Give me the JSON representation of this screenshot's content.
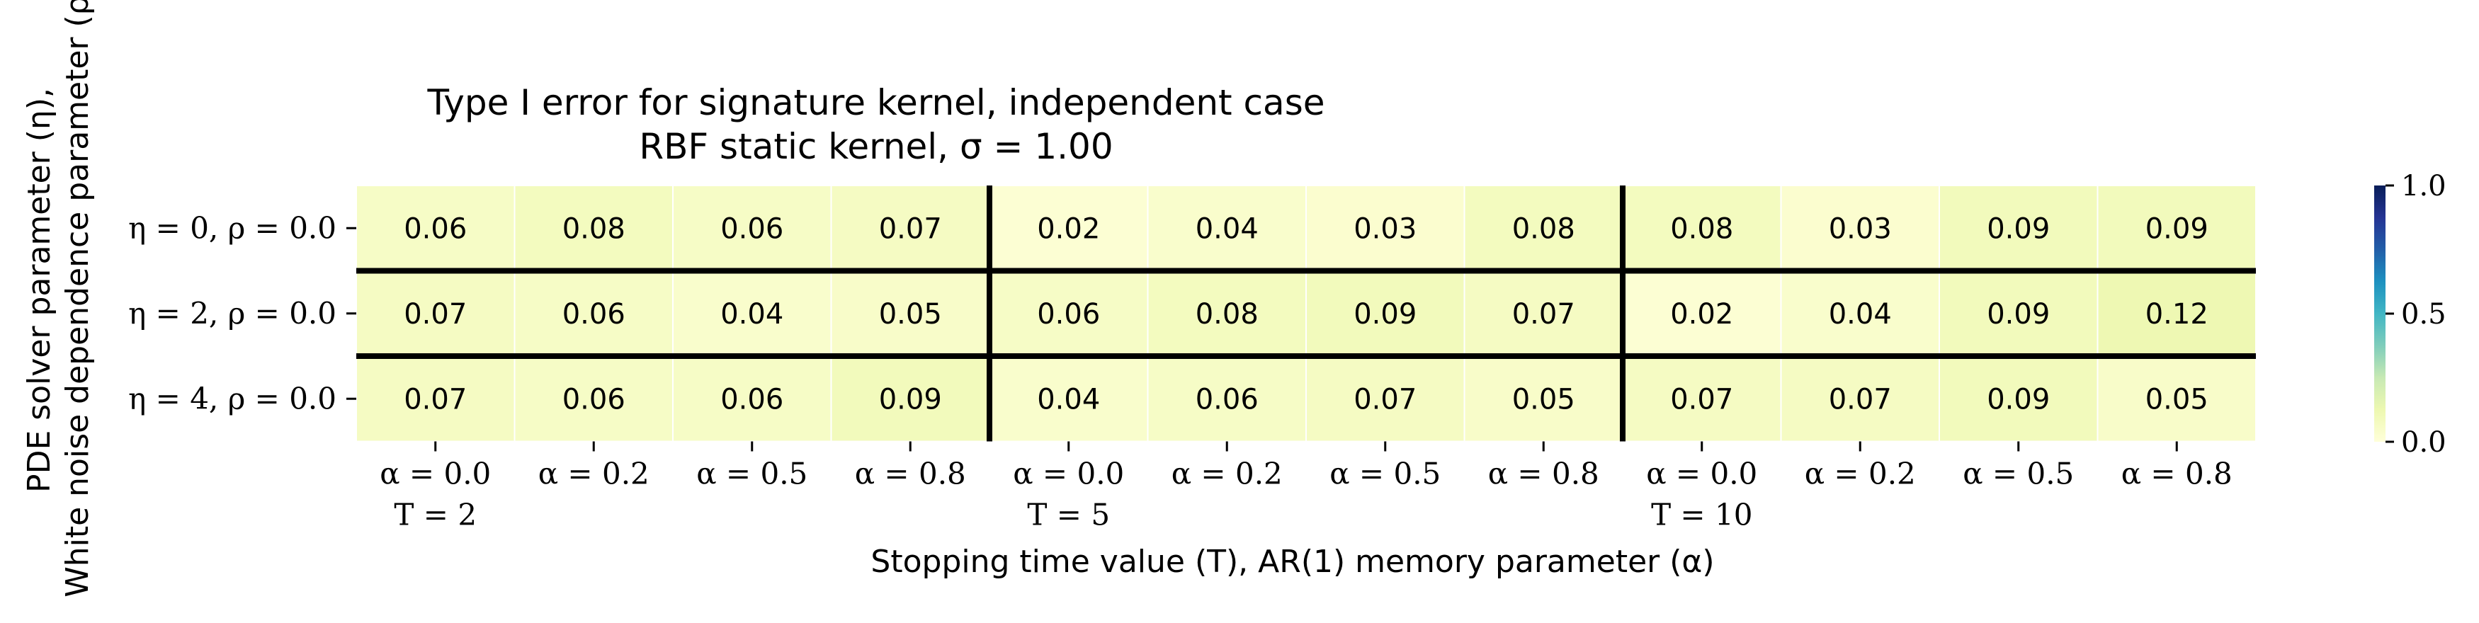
{
  "chart_data": {
    "type": "heatmap",
    "title": "Type I error for signature kernel, independent case",
    "subtitle": "RBF static kernel, σ = 1.00",
    "xlabel": "Stopping time value (T), AR(1) memory parameter (α)",
    "ylabel_line1": "PDE solver parameter (η),",
    "ylabel_line2": "White noise dependence parameter (ρ)",
    "x_tick_labels": [
      "α = 0.0",
      "α = 0.2",
      "α = 0.5",
      "α = 0.8",
      "α = 0.0",
      "α = 0.2",
      "α = 0.5",
      "α = 0.8",
      "α = 0.0",
      "α = 0.2",
      "α = 0.5",
      "α = 0.8"
    ],
    "x_group_labels": [
      "T = 2",
      "T = 5",
      "T = 10"
    ],
    "y_tick_labels": [
      "η = 0, ρ = 0.0",
      "η = 2, ρ = 0.0",
      "η = 4, ρ = 0.0"
    ],
    "values": [
      [
        0.06,
        0.08,
        0.06,
        0.07,
        0.02,
        0.04,
        0.03,
        0.08,
        0.08,
        0.03,
        0.09,
        0.09
      ],
      [
        0.07,
        0.06,
        0.04,
        0.05,
        0.06,
        0.08,
        0.09,
        0.07,
        0.02,
        0.04,
        0.09,
        0.12
      ],
      [
        0.07,
        0.06,
        0.06,
        0.09,
        0.04,
        0.06,
        0.07,
        0.05,
        0.07,
        0.07,
        0.09,
        0.05
      ]
    ],
    "value_labels": [
      [
        "0.06",
        "0.08",
        "0.06",
        "0.07",
        "0.02",
        "0.04",
        "0.03",
        "0.08",
        "0.08",
        "0.03",
        "0.09",
        "0.09"
      ],
      [
        "0.07",
        "0.06",
        "0.04",
        "0.05",
        "0.06",
        "0.08",
        "0.09",
        "0.07",
        "0.02",
        "0.04",
        "0.09",
        "0.12"
      ],
      [
        "0.07",
        "0.06",
        "0.06",
        "0.09",
        "0.04",
        "0.06",
        "0.07",
        "0.05",
        "0.07",
        "0.07",
        "0.09",
        "0.05"
      ]
    ],
    "colorbar": {
      "colormap": "YlGnBu",
      "range": [
        0.0,
        1.0
      ],
      "ticks": [
        0.0,
        0.5,
        1.0
      ],
      "tick_labels": [
        "0.0",
        "0.5",
        "1.0"
      ]
    },
    "group_separators": "thick black lines between every row and every group of 4 columns",
    "grid": false
  }
}
